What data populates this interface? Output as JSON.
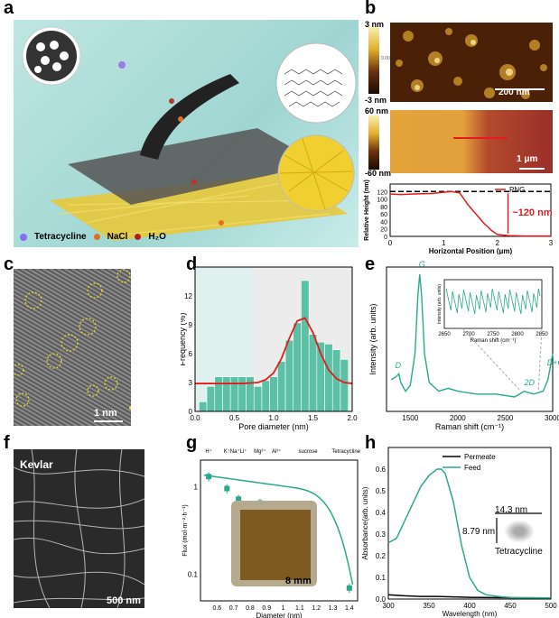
{
  "panels": {
    "a": {
      "letter": "a",
      "legend": {
        "tetracycline": "Tetracycline",
        "nacl": "NaCl",
        "h2o": "H₂O"
      }
    },
    "b": {
      "letter": "b",
      "colorbar1": {
        "top": "3 nm",
        "mid": "0.00",
        "bottom": "-3 nm"
      },
      "colorbar2": {
        "top": "60 nm",
        "bottom": "-60 nm"
      },
      "scale1": "200 nm",
      "scale2": "1 μm"
    },
    "c": {
      "letter": "c",
      "scale": "1 nm"
    },
    "d": {
      "letter": "d"
    },
    "e": {
      "letter": "e"
    },
    "f": {
      "letter": "f",
      "label": "Kevlar",
      "scale": "500 nm"
    },
    "g": {
      "letter": "g",
      "inset_scale": "8 mm"
    },
    "h": {
      "letter": "h",
      "inset": {
        "width": "14.3 nm",
        "height": "8.79 nm",
        "name": "Tetracycline"
      }
    }
  },
  "chart_data": [
    {
      "id": "b-profile",
      "type": "line",
      "xlabel": "Horizontal Position (μm)",
      "ylabel": "Relative Height (nm)",
      "xlim": [
        0,
        3
      ],
      "ylim": [
        0,
        140
      ],
      "xticks": [
        0,
        1,
        2,
        3
      ],
      "yticks": [
        0,
        20,
        40,
        60,
        80,
        100,
        120
      ],
      "series": [
        {
          "name": "PNG",
          "color": "#e41a1c",
          "x": [
            0,
            0.2,
            0.4,
            0.6,
            0.8,
            1.0,
            1.15,
            1.3,
            1.45,
            1.6,
            1.75,
            1.9,
            2.0,
            2.2,
            2.5,
            2.8,
            3.0
          ],
          "y": [
            113,
            112,
            113,
            114,
            115,
            118,
            120,
            116,
            85,
            60,
            35,
            15,
            5,
            2,
            1,
            1,
            1
          ]
        }
      ],
      "reference_line": 120,
      "annotation": "~120 nm"
    },
    {
      "id": "d-hist",
      "type": "bar",
      "xlabel": "Pore diameter (nm)",
      "ylabel": "Frequency (%)",
      "xlim": [
        0,
        2.0
      ],
      "ylim": [
        0,
        15
      ],
      "xticks": [
        0.0,
        0.5,
        1.0,
        1.5,
        2.0
      ],
      "yticks": [
        0,
        3,
        6,
        9,
        12
      ],
      "bin_width": 0.1,
      "bins": [
        0.1,
        0.2,
        0.3,
        0.4,
        0.5,
        0.6,
        0.7,
        0.8,
        0.9,
        1.0,
        1.1,
        1.2,
        1.3,
        1.4,
        1.5,
        1.6,
        1.7,
        1.8,
        1.9
      ],
      "values": [
        1,
        2.6,
        3.6,
        3.6,
        3.6,
        3.6,
        3.6,
        2.6,
        3.2,
        3.6,
        5.2,
        7.4,
        9.2,
        13.6,
        8.0,
        7.2,
        7.0,
        6.4,
        5.4
      ],
      "fit": {
        "x": [
          0,
          0.2,
          0.4,
          0.6,
          0.8,
          0.9,
          1.0,
          1.1,
          1.2,
          1.3,
          1.4,
          1.5,
          1.6,
          1.7,
          1.8,
          1.9,
          2.0
        ],
        "y": [
          2.9,
          2.9,
          2.9,
          2.9,
          3.0,
          3.3,
          4.0,
          5.5,
          7.6,
          9.4,
          9.7,
          8.2,
          6.0,
          4.3,
          3.4,
          3.0,
          2.9
        ]
      }
    },
    {
      "id": "e-raman",
      "type": "line",
      "xlabel": "Raman shift (cm⁻¹)",
      "ylabel": "Intensity (arb. units)",
      "xlim": [
        1250,
        3000
      ],
      "xticks": [
        1500,
        2000,
        2500,
        3000
      ],
      "series": [
        {
          "name": "",
          "color": "#2aa98c",
          "x": [
            1300,
            1350,
            1380,
            1400,
            1450,
            1500,
            1550,
            1580,
            1600,
            1620,
            1650,
            1700,
            1800,
            1900,
            2000,
            2200,
            2400,
            2600,
            2700,
            2800,
            2900,
            2950,
            3000
          ],
          "y": [
            22,
            24,
            26,
            20,
            14,
            18,
            40,
            80,
            95,
            80,
            40,
            20,
            14,
            16,
            14,
            12,
            12,
            10,
            14,
            12,
            14,
            22,
            40
          ]
        }
      ],
      "annotations": [
        "D",
        "G",
        "2D",
        "D+G"
      ],
      "inset": {
        "xlabel": "Raman shift (cm⁻¹)",
        "ylabel": "Intensity (arb. units)",
        "xticks": [
          2650,
          2700,
          2750,
          2800,
          2850
        ],
        "xlim": [
          2650,
          2850
        ]
      }
    },
    {
      "id": "g-flux",
      "type": "scatter",
      "xlabel": "Diameter (nm)",
      "ylabel": "Flux (mol·m⁻²·h⁻¹)",
      "xlim": [
        0.5,
        1.45
      ],
      "ylim_log": [
        0.05,
        2
      ],
      "xticks": [
        0.6,
        0.7,
        0.8,
        0.9,
        1.0,
        1.1,
        1.2,
        1.3,
        1.4
      ],
      "yticks": [
        0.1,
        1
      ],
      "top_labels": [
        "H⁺",
        "K⁺",
        "Na⁺Li⁺",
        "Mg²⁺",
        "Al³⁺",
        "sucrose",
        "Tetracycline"
      ],
      "top_label_x": [
        0.55,
        0.66,
        0.73,
        0.86,
        0.96,
        1.15,
        1.38
      ],
      "points": {
        "x": [
          0.55,
          0.66,
          0.73,
          0.86,
          0.96,
          1.15,
          1.4
        ],
        "y": [
          1.3,
          0.95,
          0.72,
          0.65,
          0.6,
          0.45,
          0.07
        ]
      },
      "fit_color": "#2aa98c"
    },
    {
      "id": "h-abs",
      "type": "line",
      "xlabel": "Wavelength (nm)",
      "ylabel": "Absorbance(arb. units)",
      "xlim": [
        300,
        500
      ],
      "ylim": [
        0,
        0.7
      ],
      "xticks": [
        300,
        350,
        400,
        450,
        500
      ],
      "yticks": [
        0.0,
        0.1,
        0.2,
        0.3,
        0.4,
        0.5,
        0.6
      ],
      "series": [
        {
          "name": "Permeate",
          "color": "#000000",
          "x": [
            300,
            320,
            340,
            360,
            380,
            400,
            450,
            500
          ],
          "y": [
            0.02,
            0.015,
            0.012,
            0.012,
            0.01,
            0.008,
            0.006,
            0.005
          ]
        },
        {
          "name": "Feed",
          "color": "#2aa98c",
          "x": [
            300,
            310,
            320,
            330,
            340,
            350,
            360,
            365,
            370,
            380,
            390,
            400,
            410,
            420,
            440,
            460,
            500
          ],
          "y": [
            0.26,
            0.28,
            0.36,
            0.44,
            0.52,
            0.57,
            0.6,
            0.6,
            0.58,
            0.45,
            0.25,
            0.1,
            0.04,
            0.02,
            0.01,
            0.005,
            0.005
          ]
        }
      ]
    }
  ]
}
